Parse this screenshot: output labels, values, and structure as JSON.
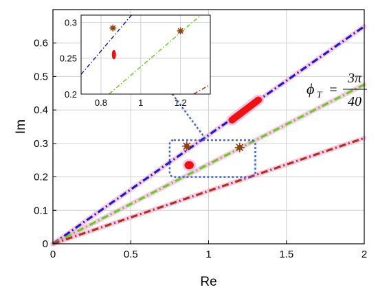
{
  "chart_data": {
    "type": "scatter",
    "title": "",
    "xlabel": "Re",
    "ylabel": "Im",
    "xlim": [
      0,
      2
    ],
    "ylim": [
      0,
      0.7
    ],
    "grid": true,
    "xticks": [
      "0",
      "0.5",
      "1",
      "1.5",
      "2"
    ],
    "yticks": [
      "0",
      "0.1",
      "0.2",
      "0.3",
      "0.4",
      "0.5",
      "0.6"
    ],
    "lines": [
      {
        "color": "#1a1acc",
        "style": "dash-dot",
        "slope": 0.325
      },
      {
        "color": "#66cc22",
        "style": "dash-dot",
        "slope": 0.238
      },
      {
        "color": "#b03020",
        "style": "dash-dot",
        "slope": 0.158
      }
    ],
    "star_points": [
      {
        "x": 0.86,
        "y": 0.292
      },
      {
        "x": 1.2,
        "y": 0.288
      }
    ],
    "clusters": [
      {
        "center": [
          0.875,
          0.235
        ],
        "spread": [
          0.03,
          0.012
        ]
      },
      {
        "from": [
          1.15,
          0.37
        ],
        "to": [
          1.32,
          0.43
        ],
        "width": 0.022
      }
    ],
    "annotation": {
      "symbol": "ϕ",
      "subscript": "T",
      "numerator": "3π",
      "denominator": "40"
    },
    "inset": {
      "xlim": [
        0.7,
        1.35
      ],
      "ylim": [
        0.2,
        0.31
      ],
      "xticks": [
        "0.8",
        "1",
        "1.2"
      ],
      "yticks": [
        "0.2",
        "0.25",
        "0.3"
      ]
    },
    "colors": {
      "points": "#ee1111",
      "star": "#8b4513",
      "halo": "#f5a0d0",
      "zoom_box": "#4466cc"
    }
  }
}
